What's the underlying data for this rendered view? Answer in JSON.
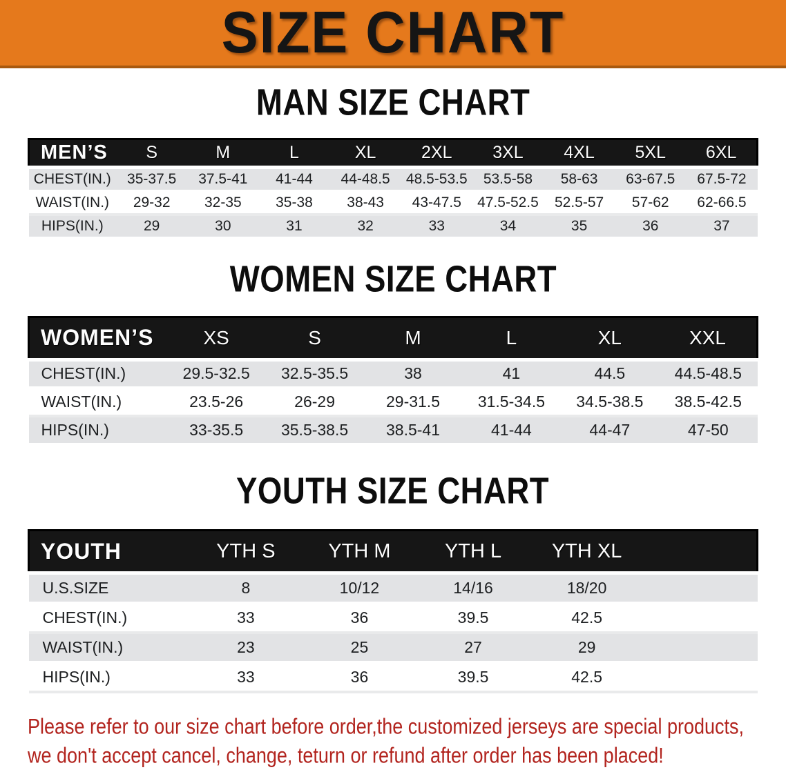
{
  "banner": {
    "title": "SIZE CHART"
  },
  "colors": {
    "banner_bg": "#e5791c",
    "table_header_bg": "#161616",
    "row_gray": "#e2e3e5",
    "row_white": "#ffffff",
    "disclaimer_red": "#b2241e"
  },
  "sections": [
    {
      "title": "MAN SIZE CHART",
      "corner_label": "MEN’S",
      "columns": [
        "S",
        "M",
        "L",
        "XL",
        "2XL",
        "3XL",
        "4XL",
        "5XL",
        "6XL"
      ],
      "rows": [
        {
          "label": "CHEST(IN.)",
          "values": [
            "35-37.5",
            "37.5-41",
            "41-44",
            "44-48.5",
            "48.5-53.5",
            "53.5-58",
            "58-63",
            "63-67.5",
            "67.5-72"
          ]
        },
        {
          "label": "WAIST(IN.)",
          "values": [
            "29-32",
            "32-35",
            "35-38",
            "38-43",
            "43-47.5",
            "47.5-52.5",
            "52.5-57",
            "57-62",
            "62-66.5"
          ]
        },
        {
          "label": "HIPS(IN.)",
          "values": [
            "29",
            "30",
            "31",
            "32",
            "33",
            "34",
            "35",
            "36",
            "37"
          ]
        }
      ]
    },
    {
      "title": "WOMEN SIZE CHART",
      "corner_label": "WOMEN’S",
      "columns": [
        "XS",
        "S",
        "M",
        "L",
        "XL",
        "XXL"
      ],
      "rows": [
        {
          "label": "CHEST(IN.)",
          "values": [
            "29.5-32.5",
            "32.5-35.5",
            "38",
            "41",
            "44.5",
            "44.5-48.5"
          ]
        },
        {
          "label": "WAIST(IN.)",
          "values": [
            "23.5-26",
            "26-29",
            "29-31.5",
            "31.5-34.5",
            "34.5-38.5",
            "38.5-42.5"
          ]
        },
        {
          "label": "HIPS(IN.)",
          "values": [
            "33-35.5",
            "35.5-38.5",
            "38.5-41",
            "41-44",
            "44-47",
            "47-50"
          ]
        }
      ]
    },
    {
      "title": "YOUTH SIZE CHART",
      "corner_label": "YOUTH",
      "columns": [
        "YTH S",
        "YTH M",
        "YTH L",
        "YTH XL",
        ""
      ],
      "rows": [
        {
          "label": "U.S.SIZE",
          "values": [
            "8",
            "10/12",
            "14/16",
            "18/20",
            ""
          ]
        },
        {
          "label": "CHEST(IN.)",
          "values": [
            "33",
            "36",
            "39.5",
            "42.5",
            ""
          ]
        },
        {
          "label": "WAIST(IN.)",
          "values": [
            "23",
            "25",
            "27",
            "29",
            ""
          ]
        },
        {
          "label": "HIPS(IN.)",
          "values": [
            "33",
            "36",
            "39.5",
            "42.5",
            ""
          ]
        }
      ]
    }
  ],
  "disclaimer": {
    "line1": "Please refer to our size chart before order,the customized jerseys are special products,",
    "line2": "we don't accept cancel, change, teturn or refund after order has been placed!"
  }
}
